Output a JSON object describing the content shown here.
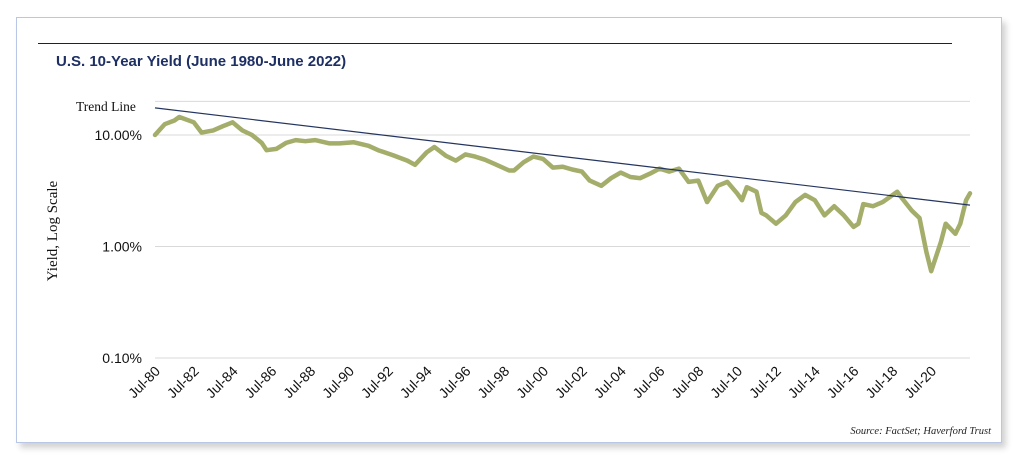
{
  "chart_data": {
    "type": "line",
    "title": "U.S. 10-Year Yield (June 1980-June 2022)",
    "ylabel": "Yield, Log Scale",
    "y_scale": "log",
    "ylim": [
      0.1,
      20
    ],
    "y_ticks": [
      {
        "value": 10,
        "label": "10.00%"
      },
      {
        "value": 1,
        "label": "1.00%"
      },
      {
        "value": 0.1,
        "label": "0.10%"
      }
    ],
    "x_tick_labels": [
      "Jul-80",
      "Jul-82",
      "Jul-84",
      "Jul-86",
      "Jul-88",
      "Jul-90",
      "Jul-92",
      "Jul-94",
      "Jul-96",
      "Jul-98",
      "Jul-00",
      "Jul-02",
      "Jul-04",
      "Jul-06",
      "Jul-08",
      "Jul-10",
      "Jul-12",
      "Jul-14",
      "Jul-16",
      "Jul-18",
      "Jul-20"
    ],
    "x_range": [
      1980.5,
      2022.5
    ],
    "series": [
      {
        "color": "#a4ad6a",
        "x": [
          1980.5,
          1981.0,
          1981.5,
          1981.75,
          1982.0,
          1982.5,
          1982.9,
          1983.5,
          1984.0,
          1984.5,
          1985.0,
          1985.5,
          1986.0,
          1986.25,
          1986.75,
          1987.25,
          1987.75,
          1988.25,
          1988.75,
          1989.5,
          1990.0,
          1990.75,
          1991.5,
          1992.0,
          1992.75,
          1993.5,
          1993.9,
          1994.5,
          1994.9,
          1995.5,
          1996.0,
          1996.5,
          1997.0,
          1997.5,
          1998.0,
          1998.75,
          1999.0,
          1999.5,
          2000.0,
          2000.5,
          2001.0,
          2001.5,
          2002.0,
          2002.5,
          2002.9,
          2003.5,
          2004.0,
          2004.5,
          2005.0,
          2005.5,
          2006.0,
          2006.5,
          2007.0,
          2007.5,
          2008.0,
          2008.5,
          2008.95,
          2009.5,
          2010.0,
          2010.5,
          2010.75,
          2011.0,
          2011.5,
          2011.75,
          2012.0,
          2012.5,
          2013.0,
          2013.5,
          2014.0,
          2014.5,
          2015.0,
          2015.5,
          2016.0,
          2016.5,
          2016.75,
          2017.0,
          2017.5,
          2018.0,
          2018.75,
          2019.0,
          2019.5,
          2019.9,
          2020.25,
          2020.5,
          2021.0,
          2021.25,
          2021.75,
          2022.0,
          2022.3,
          2022.5
        ],
        "values": [
          10.0,
          12.5,
          13.5,
          14.5,
          14.0,
          13.0,
          10.5,
          11.0,
          12.0,
          13.0,
          11.0,
          10.0,
          8.5,
          7.3,
          7.5,
          8.5,
          9.0,
          8.8,
          9.0,
          8.4,
          8.4,
          8.6,
          8.0,
          7.3,
          6.6,
          5.9,
          5.4,
          7.0,
          7.8,
          6.5,
          5.9,
          6.7,
          6.4,
          6.0,
          5.5,
          4.8,
          4.8,
          5.7,
          6.4,
          6.1,
          5.1,
          5.2,
          4.9,
          4.7,
          3.9,
          3.5,
          4.1,
          4.6,
          4.2,
          4.1,
          4.5,
          5.0,
          4.7,
          5.0,
          3.8,
          3.9,
          2.5,
          3.5,
          3.8,
          3.0,
          2.6,
          3.4,
          3.1,
          2.0,
          1.9,
          1.6,
          1.9,
          2.5,
          2.9,
          2.6,
          1.9,
          2.3,
          1.9,
          1.5,
          1.6,
          2.4,
          2.3,
          2.5,
          3.1,
          2.7,
          2.1,
          1.8,
          0.9,
          0.6,
          1.1,
          1.6,
          1.3,
          1.6,
          2.6,
          3.0
        ]
      }
    ],
    "annotations": [
      {
        "text": "Trend Line",
        "start": {
          "x": 1980.5,
          "y": 17.5
        },
        "end": {
          "x": 2022.5,
          "y": 2.35
        }
      }
    ],
    "source": "Source: FactSet; Haverford Trust",
    "grid": "horizontal"
  }
}
